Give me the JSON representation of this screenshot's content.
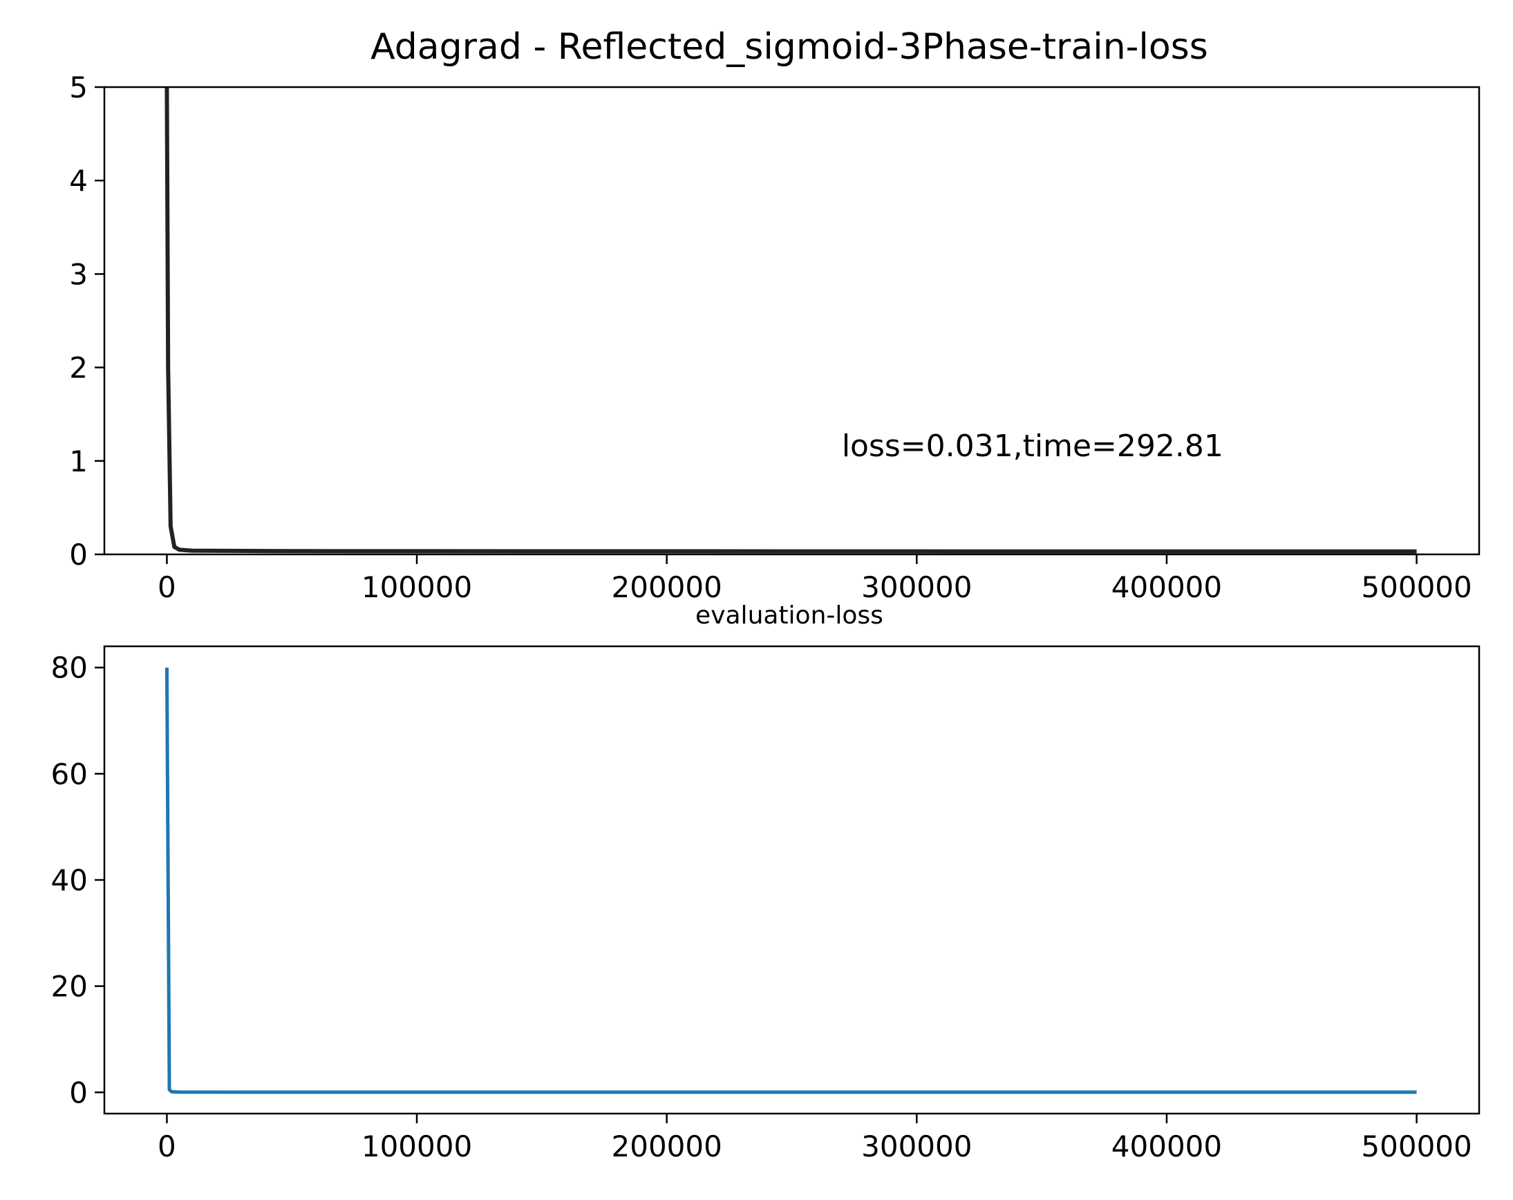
{
  "chart_data": [
    {
      "type": "line",
      "title": "Adagrad - Reflected_sigmoid-3Phase-train-loss",
      "xlabel": "",
      "ylabel": "",
      "xlim": [
        -25000,
        525000
      ],
      "ylim": [
        0,
        5
      ],
      "x_ticks": [
        0,
        100000,
        200000,
        300000,
        400000,
        500000
      ],
      "x_tick_labels": [
        "0",
        "100000",
        "200000",
        "300000",
        "400000",
        "500000"
      ],
      "y_ticks": [
        0,
        1,
        2,
        3,
        4,
        5
      ],
      "y_tick_labels": [
        "0",
        "1",
        "2",
        "3",
        "4",
        "5"
      ],
      "grid": false,
      "annotation": {
        "text": "loss=0.031,time=292.81",
        "x": 270000,
        "y": 1.05
      },
      "series": [
        {
          "color": "#222222",
          "x": [
            0,
            500,
            1500,
            3000,
            5000,
            10000,
            50000,
            100000,
            200000,
            300000,
            400000,
            500000
          ],
          "y": [
            5,
            2.0,
            0.3,
            0.08,
            0.05,
            0.04,
            0.035,
            0.034,
            0.033,
            0.032,
            0.031,
            0.031
          ]
        }
      ]
    },
    {
      "type": "line",
      "title": "evaluation-loss",
      "xlabel": "",
      "ylabel": "",
      "xlim": [
        -25000,
        525000
      ],
      "ylim": [
        -4,
        84
      ],
      "x_ticks": [
        0,
        100000,
        200000,
        300000,
        400000,
        500000
      ],
      "x_tick_labels": [
        "0",
        "100000",
        "200000",
        "300000",
        "400000",
        "500000"
      ],
      "y_ticks": [
        0,
        20,
        40,
        60,
        80
      ],
      "y_tick_labels": [
        "0",
        "20",
        "40",
        "60",
        "80"
      ],
      "grid": false,
      "series": [
        {
          "color": "#1f77b4",
          "x": [
            0,
            1000,
            2000,
            5000,
            50000,
            100000,
            200000,
            300000,
            400000,
            500000
          ],
          "y": [
            80,
            0.5,
            0.1,
            0.05,
            0.04,
            0.04,
            0.035,
            0.035,
            0.03,
            0.03
          ]
        }
      ]
    }
  ]
}
